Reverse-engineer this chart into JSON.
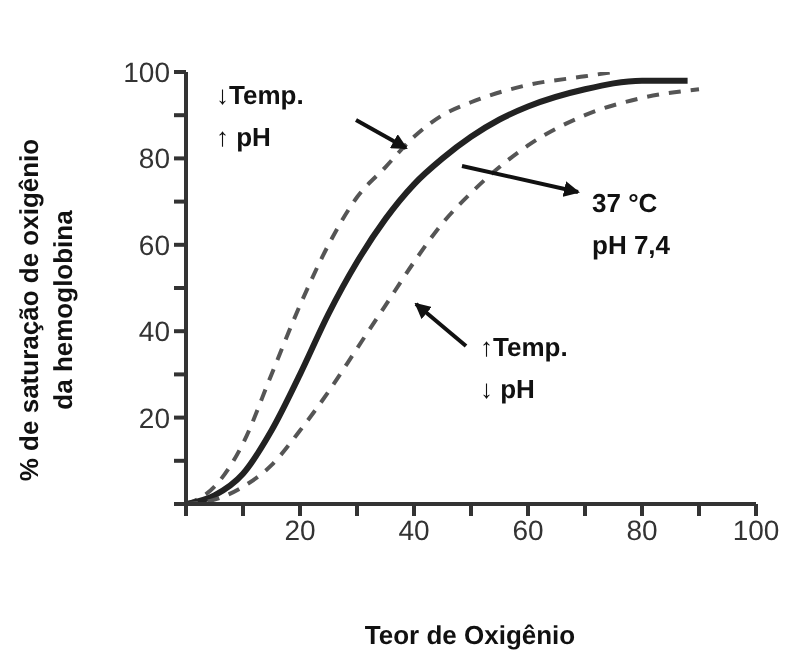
{
  "chart_data": {
    "type": "line",
    "xlabel": "Teor de Oxigênio",
    "ylabel": "% de saturação de oxigênio\nda hemoglobina",
    "annotations": [
      "↓Temp.\n↑ pH",
      "37 °C\npH 7,4",
      "↑Temp.\n↓ pH"
    ],
    "xlim": [
      0,
      100
    ],
    "ylim": [
      0,
      100
    ],
    "xticks": [
      {
        "value": 0,
        "label": null
      },
      {
        "value": 10,
        "label": null
      },
      20,
      {
        "value": 30,
        "label": null
      },
      40,
      {
        "value": 50,
        "label": null
      },
      60,
      {
        "value": 70,
        "label": null
      },
      80,
      {
        "value": 90,
        "label": null
      },
      100
    ],
    "yticks": [
      {
        "value": 0,
        "label": null
      },
      {
        "value": 10,
        "label": null
      },
      20,
      {
        "value": 30,
        "label": null
      },
      40,
      {
        "value": 50,
        "label": null
      },
      60,
      {
        "value": 70,
        "label": null
      },
      80,
      {
        "value": 90,
        "label": null
      },
      100
    ],
    "grid": false,
    "legend": false,
    "marker": "none",
    "series": [
      {
        "color": "#555555",
        "line_style": "dashed",
        "x": [
          0,
          5,
          10,
          15,
          20,
          25,
          30,
          35,
          40,
          45,
          50,
          60,
          70,
          75
        ],
        "values": [
          0,
          4,
          14,
          30,
          46,
          60,
          71,
          78,
          85,
          90,
          93,
          97,
          99,
          100
        ]
      },
      {
        "color": "#222222",
        "line_style": "solid",
        "x": [
          0,
          5,
          10,
          15,
          20,
          25,
          30,
          35,
          40,
          45,
          50,
          55,
          60,
          70,
          80,
          88
        ],
        "values": [
          0,
          2,
          7,
          17,
          30,
          44,
          56,
          66,
          74,
          80,
          85,
          89,
          92,
          96,
          98,
          98
        ]
      },
      {
        "color": "#555555",
        "line_style": "dashed",
        "x": [
          0,
          5,
          10,
          15,
          20,
          25,
          30,
          35,
          40,
          45,
          50,
          55,
          60,
          70,
          80,
          90
        ],
        "values": [
          0,
          1,
          4,
          9,
          17,
          26,
          36,
          46,
          56,
          65,
          72,
          78,
          83,
          90,
          94,
          96
        ]
      }
    ]
  }
}
